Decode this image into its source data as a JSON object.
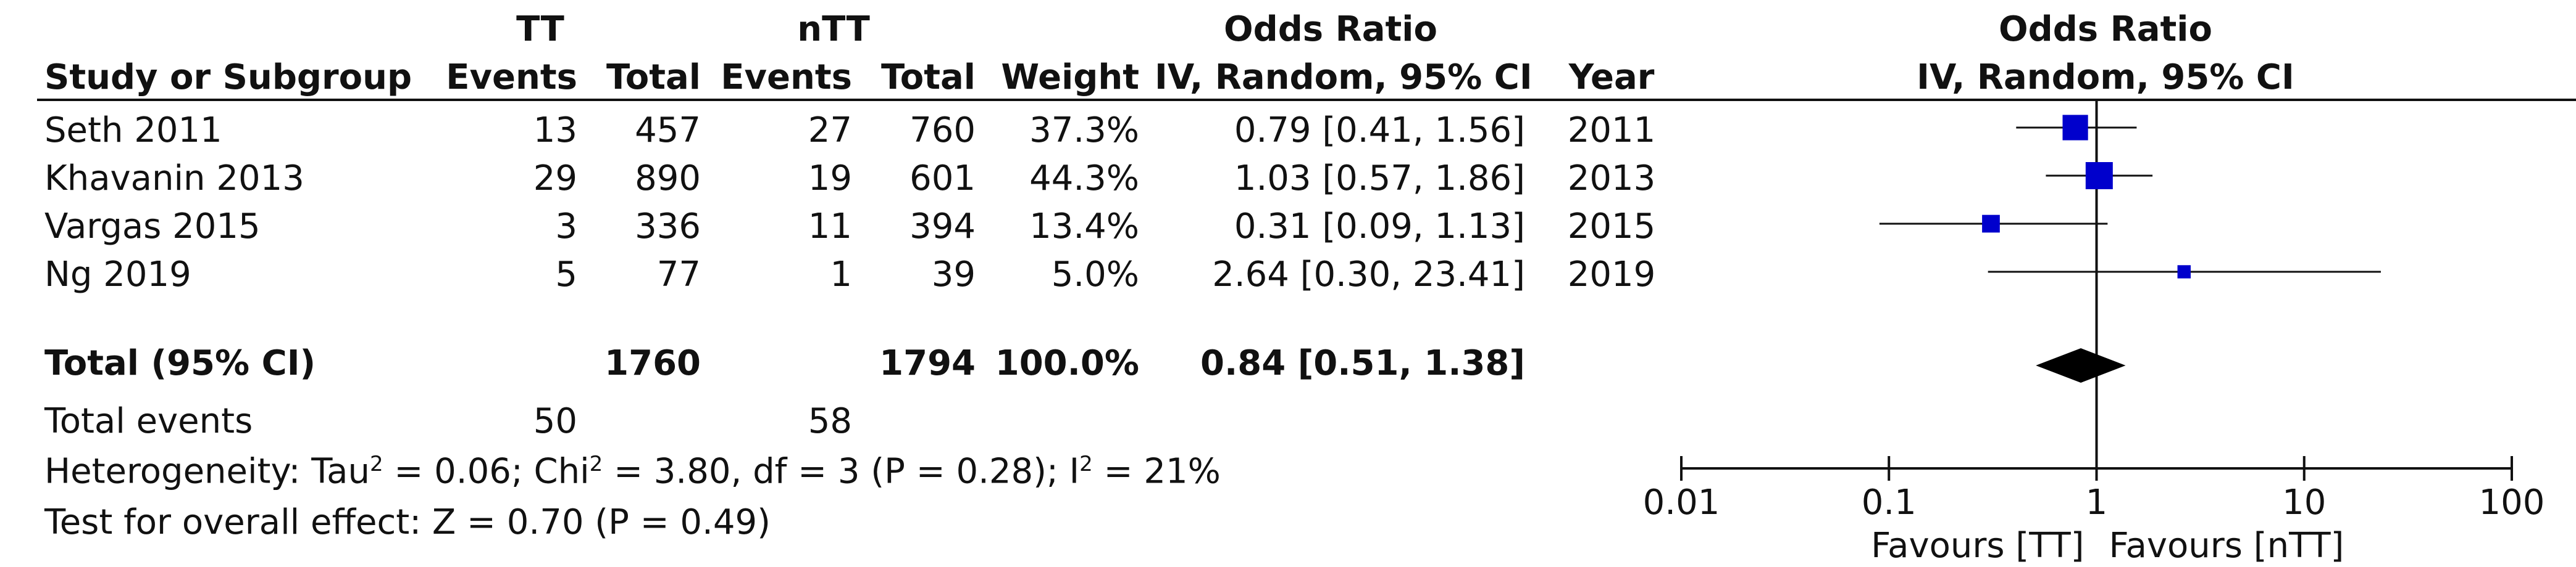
{
  "table": {
    "group_headers": {
      "tt": "TT",
      "ntt": "nTT",
      "odds_ratio": "Odds Ratio"
    },
    "headers": {
      "study": "Study or Subgroup",
      "tt_events": "Events",
      "tt_total": "Total",
      "ntt_events": "Events",
      "ntt_total": "Total",
      "weight": "Weight",
      "or_ci": "IV, Random, 95% CI",
      "year": "Year"
    },
    "rows": [
      {
        "study": "Seth 2011",
        "tt_events": "13",
        "tt_total": "457",
        "ntt_events": "27",
        "ntt_total": "760",
        "weight": "37.3%",
        "or_ci": "0.79 [0.41, 1.56]",
        "year": "2011"
      },
      {
        "study": "Khavanin 2013",
        "tt_events": "29",
        "tt_total": "890",
        "ntt_events": "19",
        "ntt_total": "601",
        "weight": "44.3%",
        "or_ci": "1.03 [0.57, 1.86]",
        "year": "2013"
      },
      {
        "study": "Vargas 2015",
        "tt_events": "3",
        "tt_total": "336",
        "ntt_events": "11",
        "ntt_total": "394",
        "weight": "13.4%",
        "or_ci": "0.31 [0.09, 1.13]",
        "year": "2015"
      },
      {
        "study": "Ng 2019",
        "tt_events": "5",
        "tt_total": "77",
        "ntt_events": "1",
        "ntt_total": "39",
        "weight": "5.0%",
        "or_ci": "2.64 [0.30, 23.41]",
        "year": "2019"
      }
    ],
    "total": {
      "label": "Total (95% CI)",
      "tt_total": "1760",
      "ntt_total": "1794",
      "weight": "100.0%",
      "or_ci": "0.84 [0.51, 1.38]"
    },
    "total_events": {
      "label": "Total events",
      "tt": "50",
      "ntt": "58"
    },
    "heterogeneity": {
      "prefix": "Heterogeneity: Tau",
      "tau_tail": " = 0.06; Chi",
      "chi_tail": " = 3.80, df = 3 (P = 0.28); I",
      "i_tail": " = 21%",
      "sup": "2"
    },
    "overall_effect": "Test for overall effect: Z = 0.70 (P = 0.49)"
  },
  "plot_header": {
    "title": "Odds Ratio",
    "subtitle": "IV, Random, 95% CI"
  },
  "chart_data": {
    "type": "forest",
    "x_scale": "log",
    "xlim": [
      0.01,
      100
    ],
    "ticks": [
      0.01,
      0.1,
      1,
      10,
      100
    ],
    "tick_labels": [
      "0.01",
      "0.1",
      "1",
      "10",
      "100"
    ],
    "favours_left": "Favours [TT]",
    "favours_right": "Favours [nTT]",
    "reference_line": 1,
    "marker_color": "#0000cc",
    "diamond_color": "#000000",
    "studies": [
      {
        "name": "Seth 2011",
        "or": 0.79,
        "lo": 0.41,
        "hi": 1.56,
        "weight": 37.3
      },
      {
        "name": "Khavanin 2013",
        "or": 1.03,
        "lo": 0.57,
        "hi": 1.86,
        "weight": 44.3
      },
      {
        "name": "Vargas 2015",
        "or": 0.31,
        "lo": 0.09,
        "hi": 1.13,
        "weight": 13.4
      },
      {
        "name": "Ng 2019",
        "or": 2.64,
        "lo": 0.3,
        "hi": 23.41,
        "weight": 5.0
      }
    ],
    "pooled": {
      "or": 0.84,
      "lo": 0.51,
      "hi": 1.38
    }
  }
}
